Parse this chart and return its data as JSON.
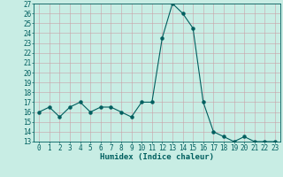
{
  "x": [
    0,
    1,
    2,
    3,
    4,
    5,
    6,
    7,
    8,
    9,
    10,
    11,
    12,
    13,
    14,
    15,
    16,
    17,
    18,
    19,
    20,
    21,
    22,
    23
  ],
  "y": [
    16,
    16.5,
    15.5,
    16.5,
    17,
    16,
    16.5,
    16.5,
    16,
    15.5,
    17,
    17,
    23.5,
    27,
    26,
    24.5,
    17,
    14,
    13.5,
    13,
    13.5,
    13,
    13,
    13
  ],
  "line_color": "#005f5f",
  "marker_color": "#005f5f",
  "bg_color": "#c8ede4",
  "grid_color": "#c8a0a8",
  "xlabel": "Humidex (Indice chaleur)",
  "ylim": [
    13,
    27
  ],
  "xlim": [
    -0.5,
    23.5
  ],
  "yticks": [
    13,
    14,
    15,
    16,
    17,
    18,
    19,
    20,
    21,
    22,
    23,
    24,
    25,
    26,
    27
  ],
  "xticks": [
    0,
    1,
    2,
    3,
    4,
    5,
    6,
    7,
    8,
    9,
    10,
    11,
    12,
    13,
    14,
    15,
    16,
    17,
    18,
    19,
    20,
    21,
    22,
    23
  ],
  "tick_label_fontsize": 5.5,
  "xlabel_fontsize": 6.5,
  "linewidth": 0.8,
  "markersize": 2.2
}
